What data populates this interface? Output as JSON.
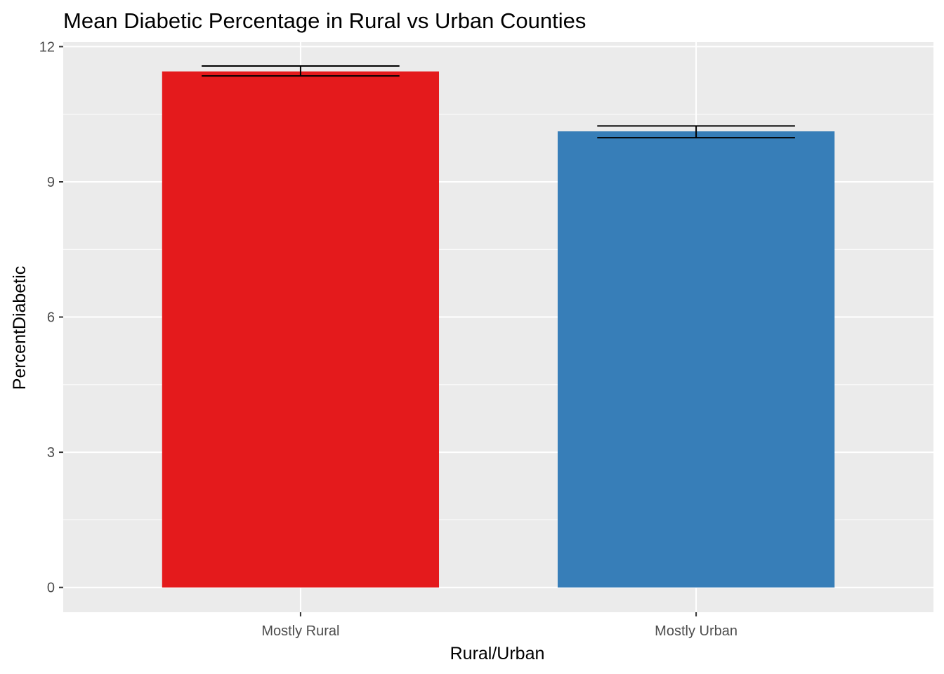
{
  "chart_data": {
    "type": "bar",
    "title": "Mean Diabetic Percentage in Rural vs Urban Counties",
    "xlabel": "Rural/Urban",
    "ylabel": "PercentDiabetic",
    "categories": [
      "Mostly Rural",
      "Mostly Urban"
    ],
    "values": [
      11.45,
      10.12
    ],
    "error_low": [
      11.35,
      9.98
    ],
    "error_high": [
      11.57,
      10.24
    ],
    "colors": [
      "#E41A1C",
      "#377EB8"
    ],
    "ylim": [
      -0.55,
      12.1
    ],
    "yticks": [
      0,
      3,
      6,
      9,
      12
    ],
    "ytick_labels": [
      "0",
      "3",
      "6",
      "9",
      "12"
    ],
    "grid": true,
    "legend": "none"
  }
}
